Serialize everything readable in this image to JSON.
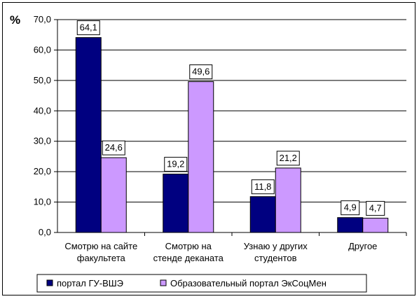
{
  "chart_data": {
    "type": "bar",
    "y_unit": "%",
    "ylim": [
      0,
      70
    ],
    "y_ticks": [
      "0,0",
      "10,0",
      "20,0",
      "30,0",
      "40,0",
      "50,0",
      "60,0",
      "70,0"
    ],
    "categories": [
      [
        "Смотрю на сайте",
        "факультета"
      ],
      [
        "Смотрю на",
        "стенде деканата"
      ],
      [
        "Узнаю у других",
        "студентов"
      ],
      [
        "Другое"
      ]
    ],
    "series": [
      {
        "name": "портал ГУ-ВШЭ",
        "color": "#000080",
        "values": [
          64.1,
          19.2,
          11.8,
          4.9
        ],
        "labels": [
          "64,1",
          "19,2",
          "11,8",
          "4,9"
        ]
      },
      {
        "name": "Образовательный портал ЭкСоцМен",
        "color": "#CC99FF",
        "values": [
          24.6,
          49.6,
          21.2,
          4.7
        ],
        "labels": [
          "24,6",
          "49,6",
          "21,2",
          "4,7"
        ]
      }
    ],
    "grid": true,
    "legend_position": "bottom"
  }
}
